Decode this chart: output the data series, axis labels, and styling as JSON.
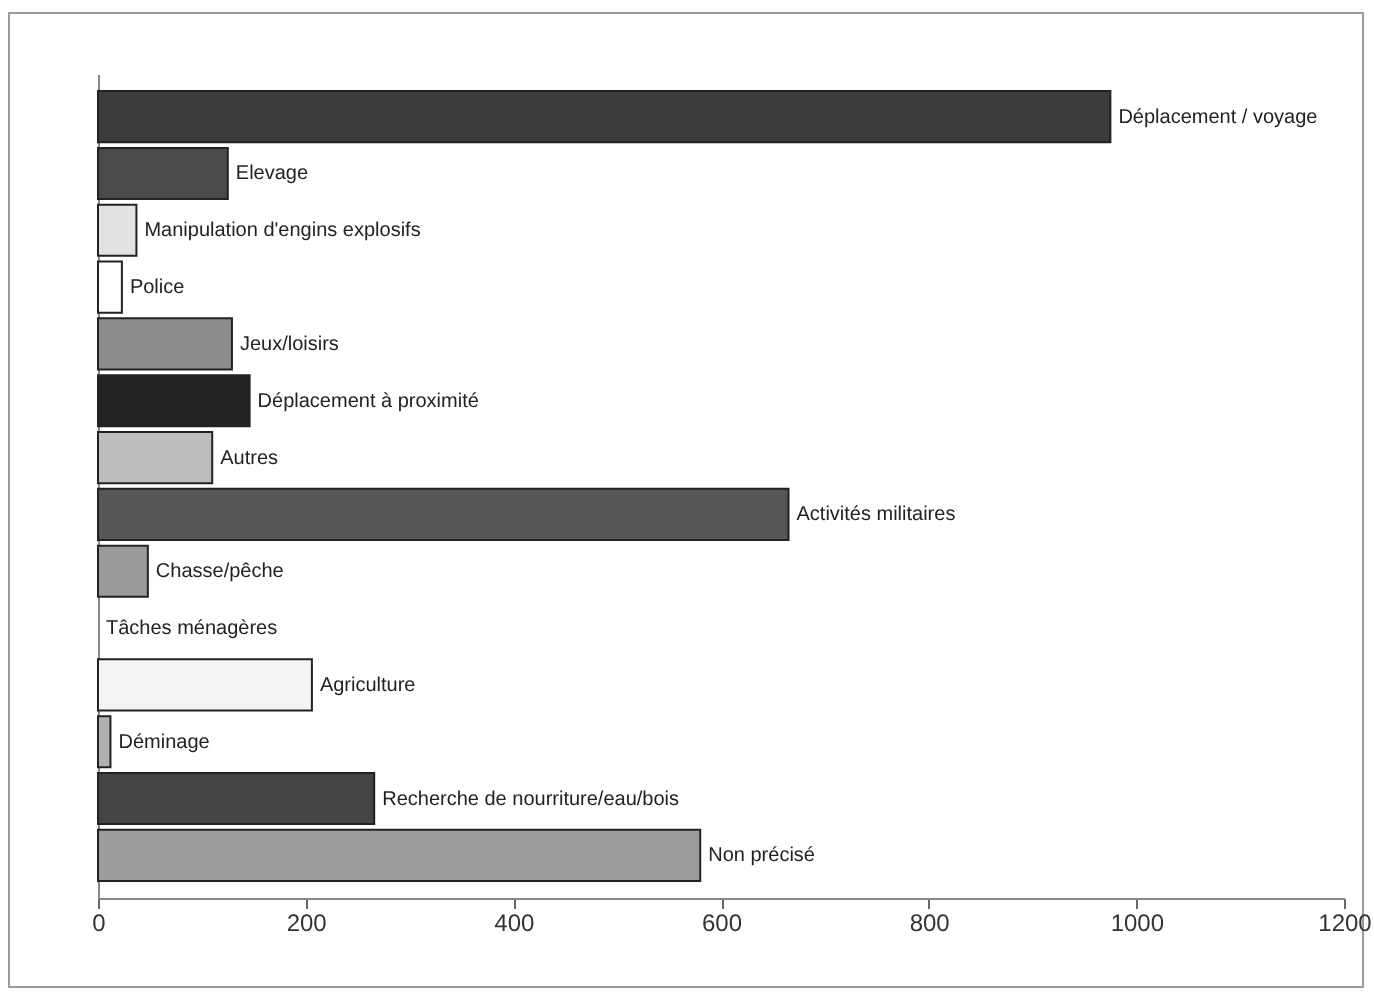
{
  "chart_data": {
    "type": "bar",
    "orientation": "horizontal",
    "tick_labels": "x",
    "categories": [
      "Déplacement / voyage",
      "Elevage",
      "Manipulation d'engins explosifs",
      "Police",
      "Jeux/loisirs",
      "Déplacement à proximité",
      "Autres",
      "Activités militaires",
      "Chasse/pêche",
      "Tâches ménagères",
      "Agriculture",
      "Déminage",
      "Recherche de nourriture/eau/bois",
      "Non précisé"
    ],
    "values": [
      975,
      125,
      37,
      23,
      129,
      146,
      110,
      665,
      48,
      null,
      206,
      12,
      266,
      580
    ],
    "colors": [
      "#3c3c3e",
      "#4a4a4c",
      "#e2e2e2",
      "#ffffff",
      "#8c8c8c",
      "#232323",
      "#bdbdbd",
      "#555557",
      "#9a9a9a",
      "#ffffff",
      "#f5f5f5",
      "#b0b0b0",
      "#444446",
      "#9c9c9c"
    ],
    "xlim": [
      0,
      1200
    ],
    "xticks": [
      0,
      200,
      400,
      600,
      800,
      1000,
      1200
    ],
    "grid": false
  }
}
